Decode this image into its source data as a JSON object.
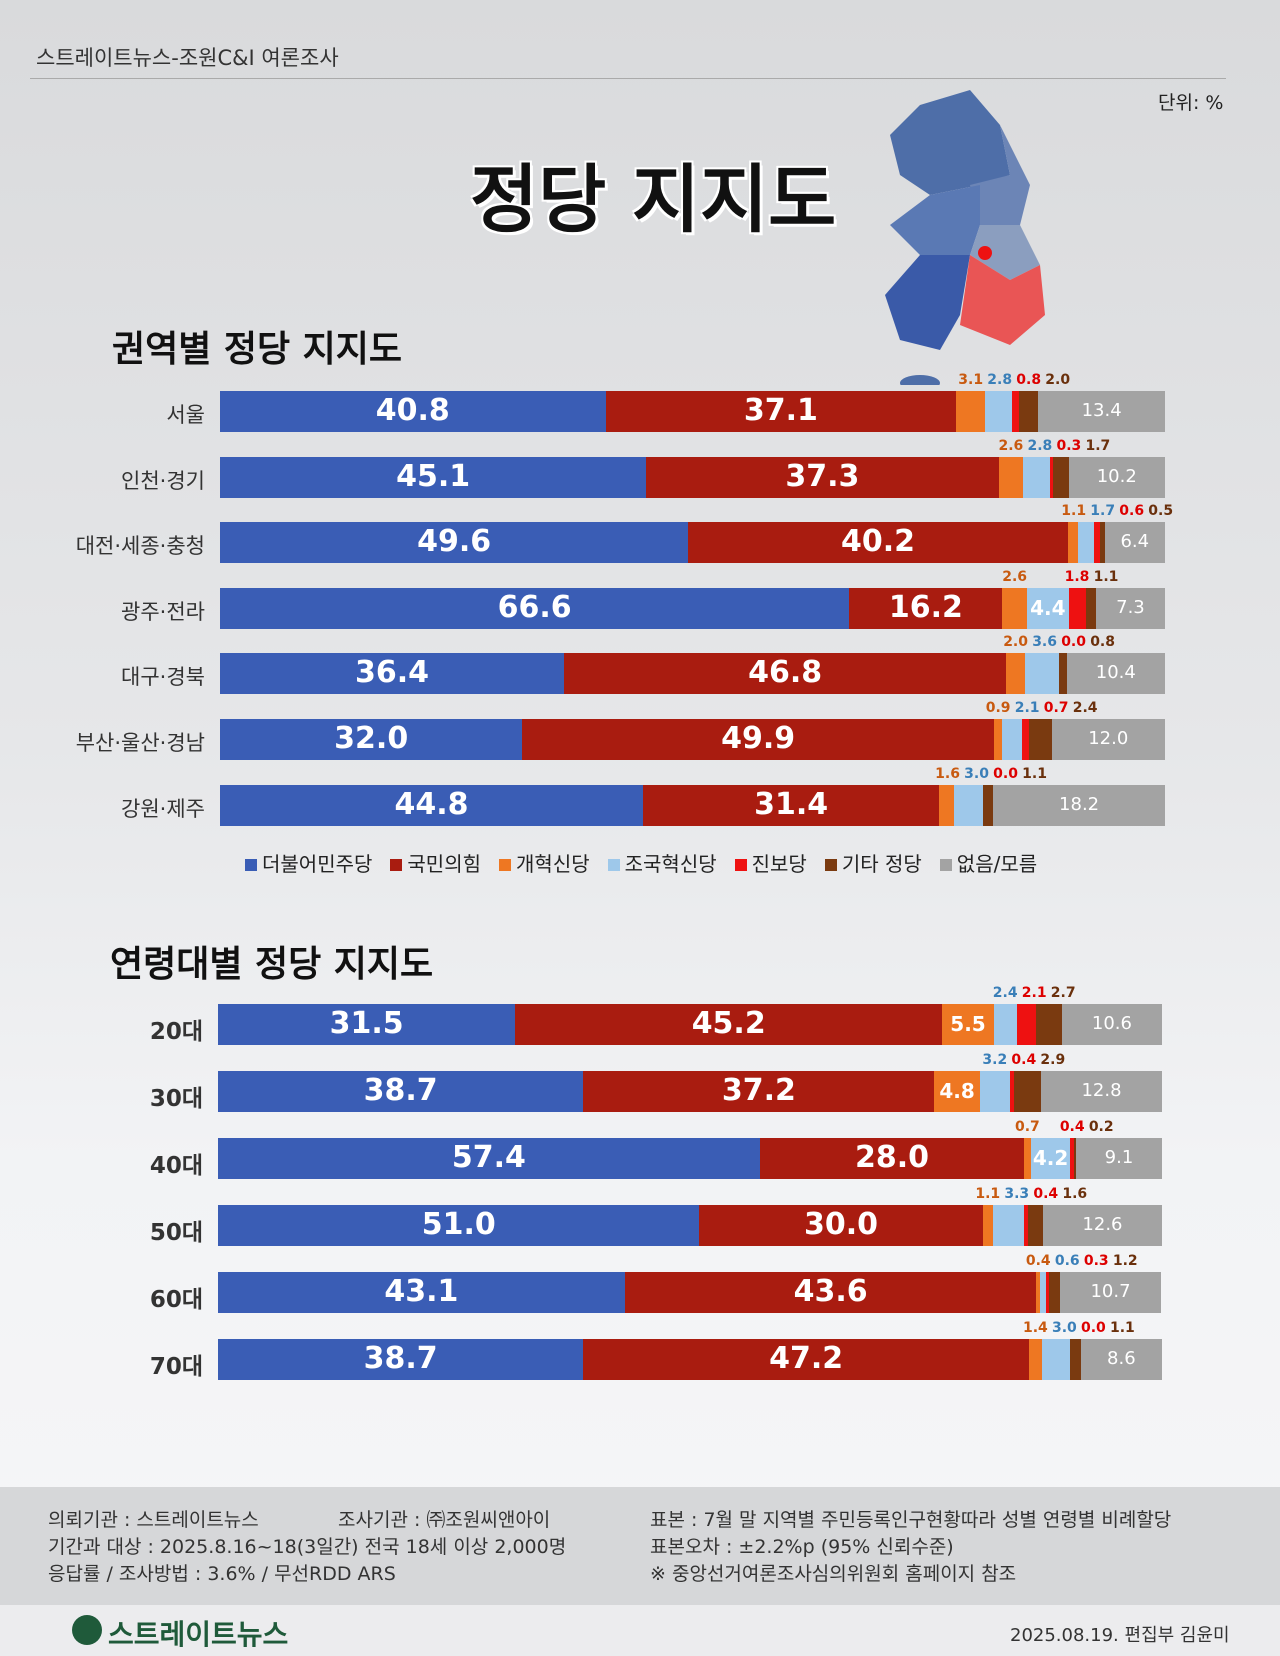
{
  "header": {
    "title": "스트레이트뉴스-조원C&I 여론조사",
    "unit": "단위: %",
    "main_title": "정당 지지도"
  },
  "colors": {
    "더불어민주당": "#3a5db5",
    "국민의힘": "#a91c10",
    "개혁신당": "#ee7722",
    "조국혁신당": "#9ec8ea",
    "진보당": "#ee1111",
    "기타 정당": "#7a3a10",
    "없음/모름": "#a3a3a3"
  },
  "chart_data": [
    {
      "type": "bar",
      "stacked": true,
      "orientation": "horizontal",
      "title": "권역별 정당 지지도",
      "categories": [
        "서울",
        "인천·경기",
        "대전·세종·충청",
        "광주·전라",
        "대구·경북",
        "부산·울산·경남",
        "강원·제주"
      ],
      "series": [
        {
          "name": "더불어민주당",
          "values": [
            40.8,
            45.1,
            49.6,
            66.6,
            36.4,
            32.0,
            44.8
          ]
        },
        {
          "name": "국민의힘",
          "values": [
            37.1,
            37.3,
            40.2,
            16.2,
            46.8,
            49.9,
            31.4
          ]
        },
        {
          "name": "개혁신당",
          "values": [
            3.1,
            2.6,
            1.1,
            2.6,
            2.0,
            0.9,
            1.6
          ]
        },
        {
          "name": "조국혁신당",
          "values": [
            2.8,
            2.8,
            1.7,
            4.4,
            3.6,
            2.1,
            3.0
          ]
        },
        {
          "name": "진보당",
          "values": [
            0.8,
            0.3,
            0.6,
            1.8,
            0.0,
            0.7,
            0.0
          ]
        },
        {
          "name": "기타 정당",
          "values": [
            2.0,
            1.7,
            0.5,
            1.1,
            0.8,
            2.4,
            1.1
          ]
        },
        {
          "name": "없음/모름",
          "values": [
            13.4,
            10.2,
            6.4,
            7.3,
            10.4,
            12.0,
            18.2
          ]
        }
      ],
      "legend": "bottom"
    },
    {
      "type": "bar",
      "stacked": true,
      "orientation": "horizontal",
      "title": "연령대별 정당 지지도",
      "categories": [
        "20대",
        "30대",
        "40대",
        "50대",
        "60대",
        "70대"
      ],
      "series": [
        {
          "name": "더불어민주당",
          "values": [
            31.5,
            38.7,
            57.4,
            51.0,
            43.1,
            38.7
          ]
        },
        {
          "name": "국민의힘",
          "values": [
            45.2,
            37.2,
            28.0,
            30.0,
            43.6,
            47.2
          ]
        },
        {
          "name": "개혁신당",
          "values": [
            5.5,
            4.8,
            0.7,
            1.1,
            0.4,
            1.4
          ]
        },
        {
          "name": "조국혁신당",
          "values": [
            2.4,
            3.2,
            4.2,
            3.3,
            0.6,
            3.0
          ]
        },
        {
          "name": "진보당",
          "values": [
            2.1,
            0.4,
            0.4,
            0.4,
            0.3,
            0.0
          ]
        },
        {
          "name": "기타 정당",
          "values": [
            2.7,
            2.9,
            0.2,
            1.6,
            1.2,
            1.1
          ]
        },
        {
          "name": "없음/모름",
          "values": [
            10.6,
            12.8,
            9.1,
            12.6,
            10.7,
            8.6
          ]
        }
      ]
    }
  ],
  "footer": {
    "client": "의뢰기관 : 스트레이트뉴스",
    "agency": "조사기관 : ㈜조원씨앤아이",
    "period": "기간과 대상 : 2025.8.16~18(3일간)   전국 18세 이상  2,000명",
    "method": "응답률 / 조사방법 : 3.6% / 무선RDD ARS",
    "sample": "표본 : 7월 말 지역별 주민등록인구현황따라 성별 연령별 비례할당",
    "error": "표본오차 : ±2.2%p (95% 신뢰수준)",
    "note": "※ 중앙선거여론조사심의위원회 홈페이지 참조",
    "logo": "스트레이트뉴스",
    "credit": "2025.08.19. 편집부 김윤미"
  }
}
